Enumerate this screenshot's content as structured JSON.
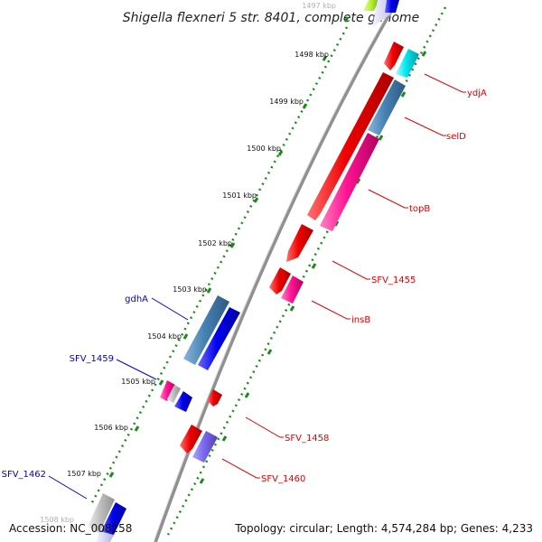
{
  "title": "Shigella flexneri 5 str. 8401, complete genome",
  "footer": {
    "accession": "Accession: NC_008258",
    "topology": "Topology: circular; Length: 4,574,284 bp; Genes: 4,233"
  },
  "ticks": [
    {
      "label": "1497 kbp",
      "faded": true
    },
    {
      "label": "1498 kbp"
    },
    {
      "label": "1499 kbp"
    },
    {
      "label": "1500 kbp"
    },
    {
      "label": "1501 kbp"
    },
    {
      "label": "1502 kbp"
    },
    {
      "label": "1503 kbp"
    },
    {
      "label": "1504 kbp"
    },
    {
      "label": "1505 kbp"
    },
    {
      "label": "1506 kbp"
    },
    {
      "label": "1507 kbp"
    },
    {
      "label": "1508 kbp",
      "faded": true
    }
  ],
  "gene_labels": [
    {
      "name": "ydjA",
      "color": "#dd0000"
    },
    {
      "name": "selD",
      "color": "#dd0000"
    },
    {
      "name": "topB",
      "color": "#dd0000"
    },
    {
      "name": "SFV_1455",
      "color": "#dd0000"
    },
    {
      "name": "insB",
      "color": "#dd0000"
    },
    {
      "name": "SFV_1458",
      "color": "#dd0000"
    },
    {
      "name": "SFV_1460",
      "color": "#dd0000"
    },
    {
      "name": "gdhA",
      "color": "#0000cc"
    },
    {
      "name": "SFV_1459",
      "color": "#0000cc"
    },
    {
      "name": "SFV_1462",
      "color": "#0000cc"
    }
  ],
  "colors": {
    "red": "#ee0000",
    "blue": "#0000ee",
    "steelblue": "#4682b4",
    "pink": "#ff1493",
    "cyan": "#00e5ee",
    "purple": "#7b68ee",
    "gray": "#c0c0c0",
    "lavender": "#d8d8f4",
    "yellowgreen": "#b9f23c",
    "backbone": "#808080",
    "tick_green": "#1a8a1a"
  }
}
